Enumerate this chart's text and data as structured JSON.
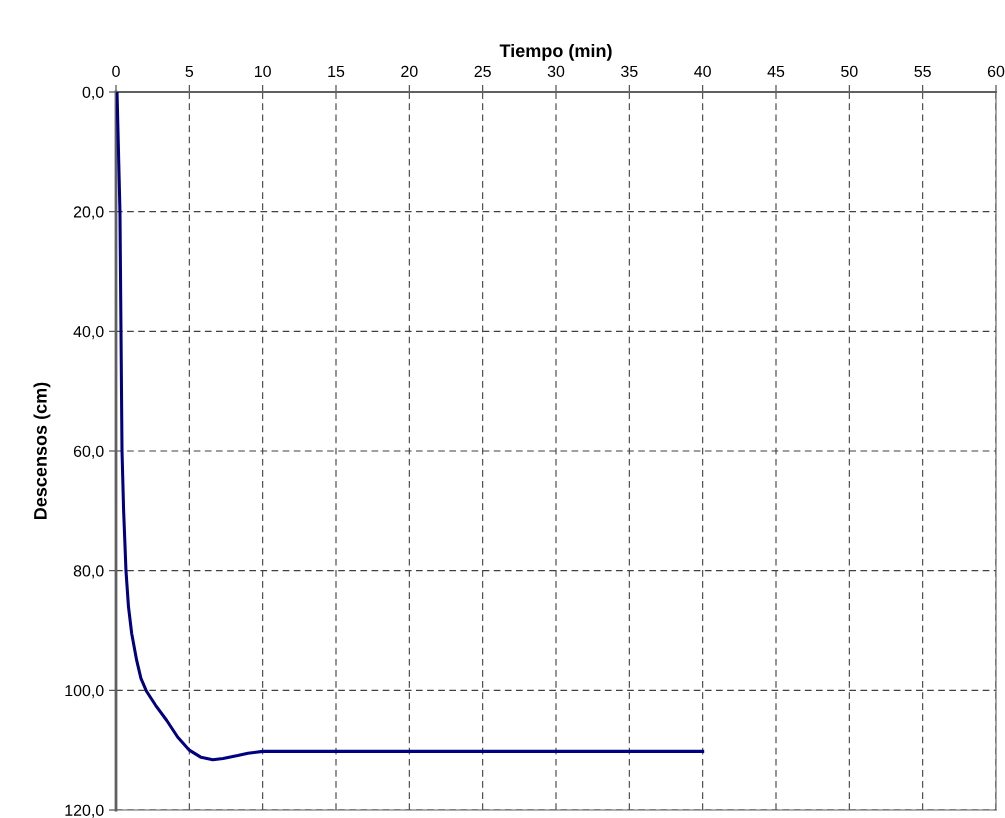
{
  "chart_data": {
    "type": "line",
    "xlabel": "Tiempo (min)",
    "ylabel": "Descensos (cm)",
    "xlim": [
      0,
      60
    ],
    "xticks": [
      0,
      5,
      10,
      15,
      20,
      25,
      30,
      35,
      40,
      45,
      50,
      55,
      60
    ],
    "ylim": [
      120,
      0
    ],
    "yticks": [
      {
        "value": 0,
        "label": "0,0"
      },
      {
        "value": 20,
        "label": "20,0"
      },
      {
        "value": 40,
        "label": "40,0"
      },
      {
        "value": 60,
        "label": "60,0"
      },
      {
        "value": 80,
        "label": "80,0"
      },
      {
        "value": 100,
        "label": "100,0"
      },
      {
        "value": 120,
        "label": "120,0"
      }
    ],
    "grid": true,
    "line_style": "solid",
    "marker": "none",
    "series": [
      {
        "color": "#000080",
        "x": [
          0.07,
          0.27,
          0.34,
          0.41,
          0.52,
          0.68,
          0.85,
          1.07,
          1.41,
          1.7,
          2.09,
          2.7,
          3.45,
          4.2,
          5.0,
          5.8,
          6.6,
          7.3,
          8.3,
          9.0,
          10.0,
          20.0,
          30.0,
          40.0
        ],
        "values": [
          0,
          20,
          40,
          60,
          70,
          80,
          86,
          90.5,
          95,
          98,
          100.2,
          102.5,
          105,
          107.8,
          110,
          111.2,
          111.6,
          111.4,
          110.9,
          110.5,
          110.2,
          110.2,
          110.2,
          110.2
        ]
      }
    ]
  }
}
